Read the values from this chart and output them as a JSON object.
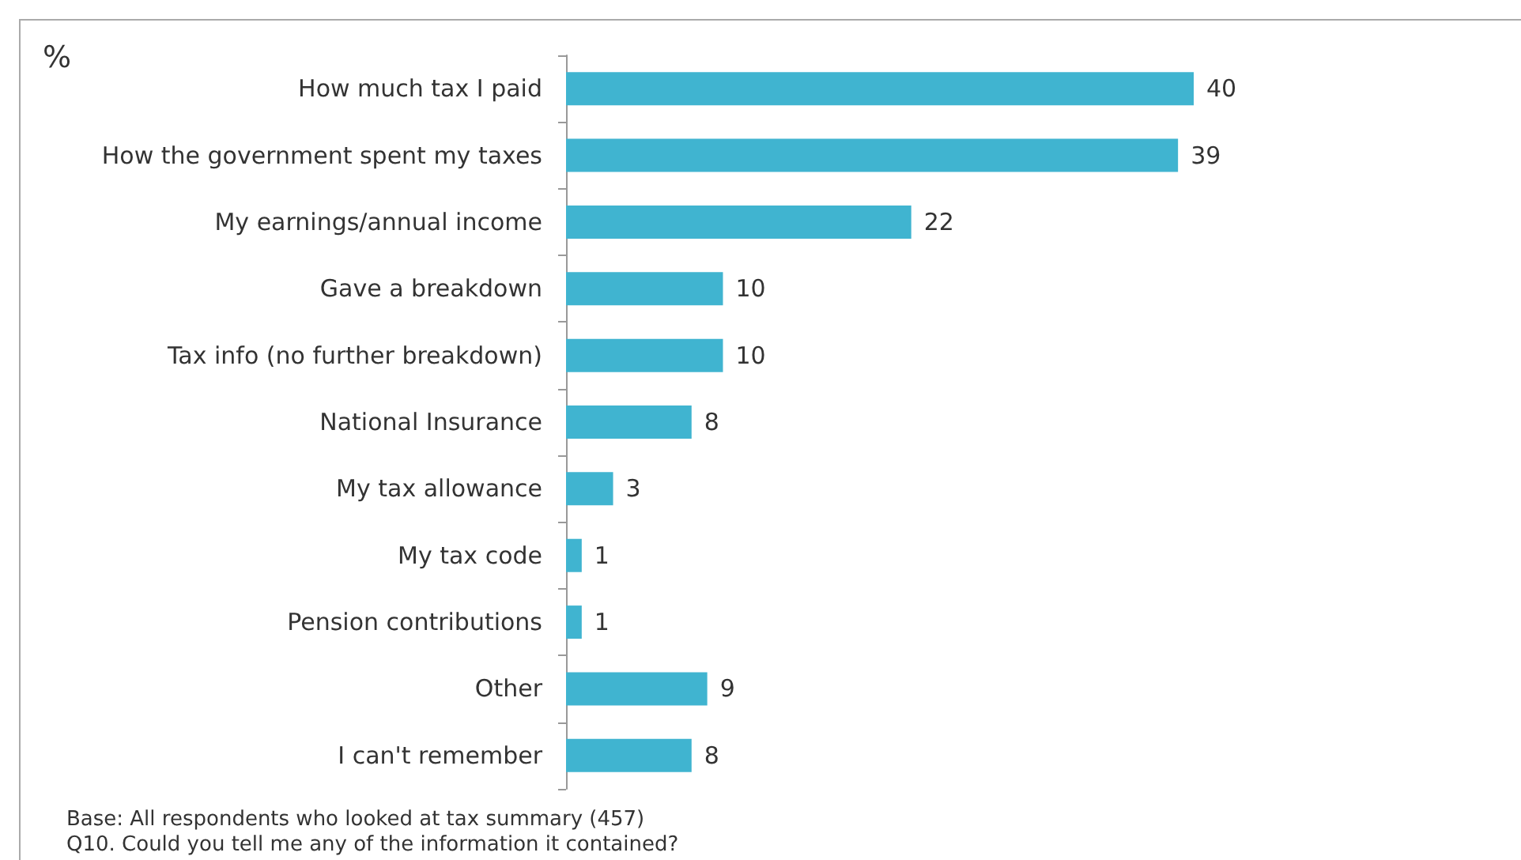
{
  "chart_data": {
    "type": "bar",
    "orientation": "horizontal",
    "title": "%",
    "categories": [
      "How much tax I paid",
      "How the government spent my taxes",
      "My earnings/annual income",
      "Gave a breakdown",
      "Tax info (no further breakdown)",
      "National Insurance",
      "My tax allowance",
      "My tax code",
      "Pension contributions",
      "Other",
      "I can't remember"
    ],
    "values": [
      40,
      39,
      22,
      10,
      10,
      8,
      3,
      1,
      1,
      9,
      8
    ],
    "color": "#40b4d0",
    "data_labels": true,
    "annotations": [
      "Base: All respondents who looked at tax summary (457)",
      "Q10. Could you tell me any of the information it contained?"
    ]
  }
}
